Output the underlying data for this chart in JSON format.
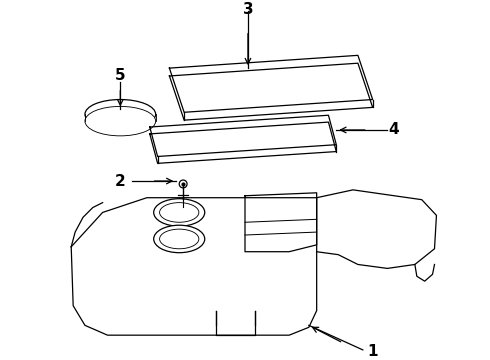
{
  "background_color": "#ffffff",
  "line_color": "#000000",
  "label_fontsize": 11,
  "label_fontweight": "bold",
  "lw": 0.9
}
